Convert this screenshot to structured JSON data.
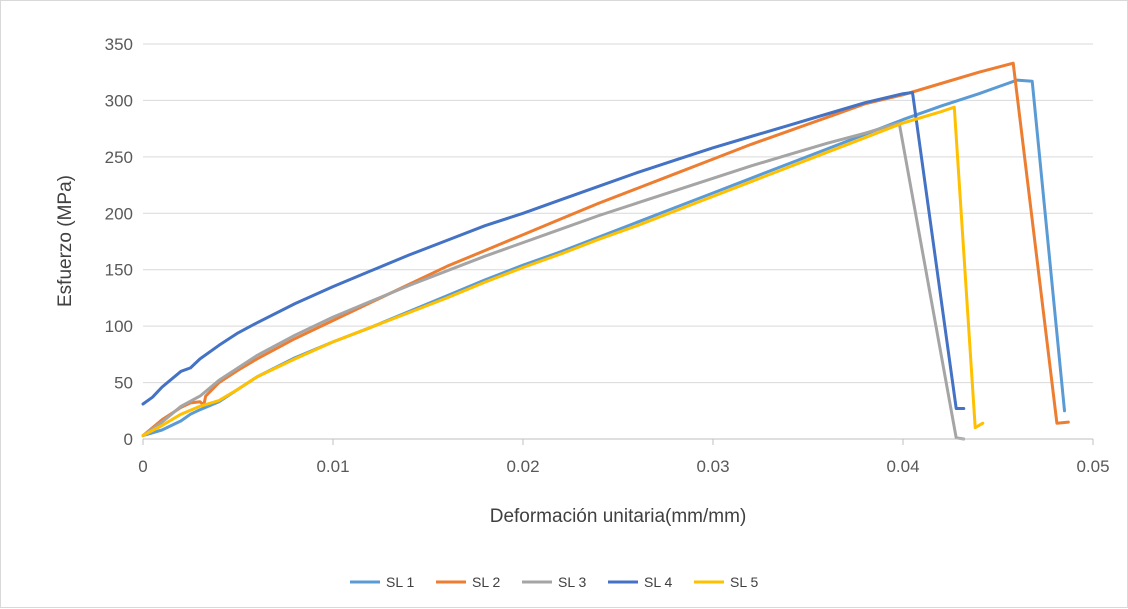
{
  "chart_data": {
    "type": "line",
    "title": "",
    "xlabel": "Deformación unitaria(mm/mm)",
    "ylabel": "Esfuerzo (MPa)",
    "xlim": [
      0,
      0.05
    ],
    "ylim": [
      0,
      350
    ],
    "xticks": [
      0,
      0.01,
      0.02,
      0.03,
      0.04,
      0.05
    ],
    "xtick_labels": [
      "0",
      "0.01",
      "0.02",
      "0.03",
      "0.04",
      "0.05"
    ],
    "yticks": [
      0,
      50,
      100,
      150,
      200,
      250,
      300,
      350
    ],
    "ytick_labels": [
      "0",
      "50",
      "100",
      "150",
      "200",
      "250",
      "300",
      "350"
    ],
    "grid": "horizontal",
    "legend_position": "bottom",
    "series": [
      {
        "name": "SL 1",
        "color": "#5B9BD5",
        "points": [
          [
            0,
            3
          ],
          [
            0.001,
            8
          ],
          [
            0.002,
            16
          ],
          [
            0.0025,
            22
          ],
          [
            0.003,
            26
          ],
          [
            0.004,
            33
          ],
          [
            0.005,
            44
          ],
          [
            0.006,
            55
          ],
          [
            0.008,
            72
          ],
          [
            0.01,
            86
          ],
          [
            0.012,
            99
          ],
          [
            0.014,
            113
          ],
          [
            0.016,
            127
          ],
          [
            0.018,
            141
          ],
          [
            0.02,
            154
          ],
          [
            0.022,
            166
          ],
          [
            0.024,
            179
          ],
          [
            0.026,
            192
          ],
          [
            0.028,
            205
          ],
          [
            0.03,
            218
          ],
          [
            0.032,
            231
          ],
          [
            0.034,
            244
          ],
          [
            0.036,
            257
          ],
          [
            0.038,
            270
          ],
          [
            0.04,
            283
          ],
          [
            0.042,
            295
          ],
          [
            0.044,
            306
          ],
          [
            0.045,
            312
          ],
          [
            0.046,
            318
          ],
          [
            0.0468,
            317
          ],
          [
            0.0485,
            25
          ]
        ]
      },
      {
        "name": "SL 2",
        "color": "#ED7D31",
        "points": [
          [
            0,
            3
          ],
          [
            0.001,
            17
          ],
          [
            0.002,
            28
          ],
          [
            0.0025,
            32
          ],
          [
            0.003,
            33
          ],
          [
            0.0032,
            30
          ],
          [
            0.0033,
            38
          ],
          [
            0.004,
            50
          ],
          [
            0.005,
            61
          ],
          [
            0.006,
            71
          ],
          [
            0.008,
            89
          ],
          [
            0.01,
            105
          ],
          [
            0.012,
            121
          ],
          [
            0.014,
            137
          ],
          [
            0.016,
            153
          ],
          [
            0.018,
            167
          ],
          [
            0.02,
            181
          ],
          [
            0.022,
            195
          ],
          [
            0.024,
            209
          ],
          [
            0.026,
            222
          ],
          [
            0.028,
            235
          ],
          [
            0.03,
            248
          ],
          [
            0.032,
            261
          ],
          [
            0.034,
            273
          ],
          [
            0.036,
            285
          ],
          [
            0.038,
            297
          ],
          [
            0.04,
            305
          ],
          [
            0.042,
            315
          ],
          [
            0.044,
            325
          ],
          [
            0.0458,
            333
          ],
          [
            0.0481,
            14
          ],
          [
            0.0487,
            15
          ]
        ]
      },
      {
        "name": "SL 3",
        "color": "#A5A5A5",
        "points": [
          [
            0,
            3
          ],
          [
            0.001,
            15
          ],
          [
            0.002,
            29
          ],
          [
            0.003,
            38
          ],
          [
            0.004,
            52
          ],
          [
            0.005,
            63
          ],
          [
            0.006,
            74
          ],
          [
            0.008,
            92
          ],
          [
            0.01,
            108
          ],
          [
            0.012,
            122
          ],
          [
            0.014,
            136
          ],
          [
            0.016,
            149
          ],
          [
            0.018,
            162
          ],
          [
            0.02,
            174
          ],
          [
            0.022,
            186
          ],
          [
            0.024,
            198
          ],
          [
            0.026,
            209
          ],
          [
            0.028,
            220
          ],
          [
            0.03,
            231
          ],
          [
            0.032,
            242
          ],
          [
            0.034,
            252
          ],
          [
            0.036,
            262
          ],
          [
            0.038,
            271
          ],
          [
            0.0398,
            280
          ],
          [
            0.0428,
            1
          ],
          [
            0.0432,
            0
          ]
        ]
      },
      {
        "name": "SL 4",
        "color": "#4472C4",
        "points": [
          [
            0,
            31
          ],
          [
            0.0005,
            37
          ],
          [
            0.001,
            46
          ],
          [
            0.002,
            60
          ],
          [
            0.0025,
            63
          ],
          [
            0.003,
            71
          ],
          [
            0.004,
            83
          ],
          [
            0.005,
            94
          ],
          [
            0.006,
            103
          ],
          [
            0.008,
            120
          ],
          [
            0.01,
            135
          ],
          [
            0.012,
            149
          ],
          [
            0.014,
            163
          ],
          [
            0.016,
            176
          ],
          [
            0.018,
            189
          ],
          [
            0.02,
            200
          ],
          [
            0.022,
            212
          ],
          [
            0.024,
            224
          ],
          [
            0.026,
            236
          ],
          [
            0.028,
            247
          ],
          [
            0.03,
            258
          ],
          [
            0.032,
            268
          ],
          [
            0.034,
            278
          ],
          [
            0.036,
            288
          ],
          [
            0.038,
            298
          ],
          [
            0.04,
            306
          ],
          [
            0.0405,
            307
          ],
          [
            0.0428,
            27
          ],
          [
            0.0432,
            27
          ]
        ]
      },
      {
        "name": "SL 5",
        "color": "#FFC000",
        "points": [
          [
            0,
            3
          ],
          [
            0.001,
            12
          ],
          [
            0.002,
            22
          ],
          [
            0.003,
            29
          ],
          [
            0.004,
            34
          ],
          [
            0.005,
            44
          ],
          [
            0.006,
            55
          ],
          [
            0.008,
            71
          ],
          [
            0.01,
            86
          ],
          [
            0.012,
            99
          ],
          [
            0.014,
            112
          ],
          [
            0.016,
            125
          ],
          [
            0.018,
            139
          ],
          [
            0.02,
            152
          ],
          [
            0.022,
            164
          ],
          [
            0.024,
            177
          ],
          [
            0.026,
            189
          ],
          [
            0.028,
            202
          ],
          [
            0.03,
            215
          ],
          [
            0.032,
            228
          ],
          [
            0.034,
            241
          ],
          [
            0.036,
            254
          ],
          [
            0.038,
            267
          ],
          [
            0.04,
            280
          ],
          [
            0.042,
            290
          ],
          [
            0.0427,
            294
          ],
          [
            0.0438,
            10
          ],
          [
            0.0442,
            14
          ]
        ]
      }
    ]
  }
}
